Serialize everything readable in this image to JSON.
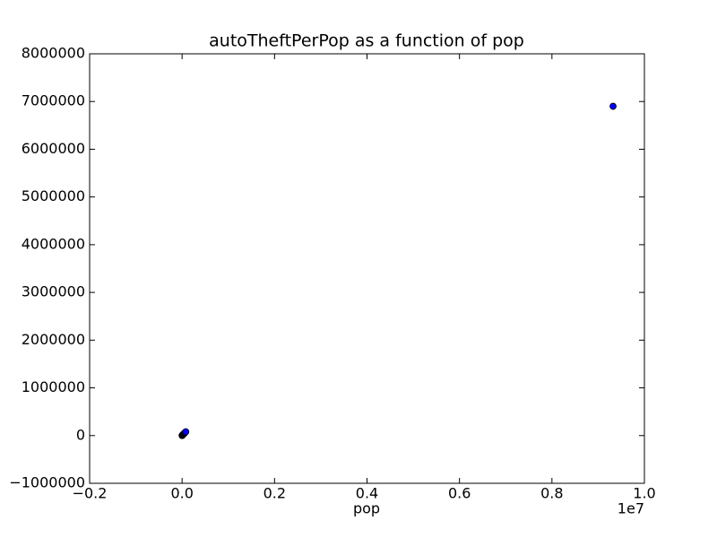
{
  "chart_data": {
    "type": "scatter",
    "title": "autoTheftPerPop as a function of pop",
    "xlabel": "pop",
    "x_offset_label": "1e7",
    "series": [
      {
        "color": "#0000ff",
        "x": [
          0.0,
          0.0005,
          0.001,
          0.002,
          0.003,
          0.004,
          0.005,
          0.006,
          0.007,
          0.008,
          0.9322
        ],
        "values": [
          0,
          5000,
          15000,
          20000,
          30000,
          40000,
          50000,
          60000,
          70000,
          80000,
          6900000
        ]
      }
    ],
    "xlim": [
      -0.2,
      1.0
    ],
    "xticks": [
      {
        "value": -0.2,
        "label": "−0.2"
      },
      {
        "value": 0,
        "label": "0.0"
      },
      0.2,
      0.4,
      0.6,
      0.8,
      {
        "value": 1.0,
        "label": "1.0"
      }
    ],
    "ylim": [
      -1000000,
      8000000
    ],
    "yticks": [
      {
        "value": -1000000,
        "label": "−1000000"
      },
      0,
      1000000,
      2000000,
      3000000,
      4000000,
      5000000,
      6000000,
      7000000,
      8000000
    ],
    "grid": false
  }
}
